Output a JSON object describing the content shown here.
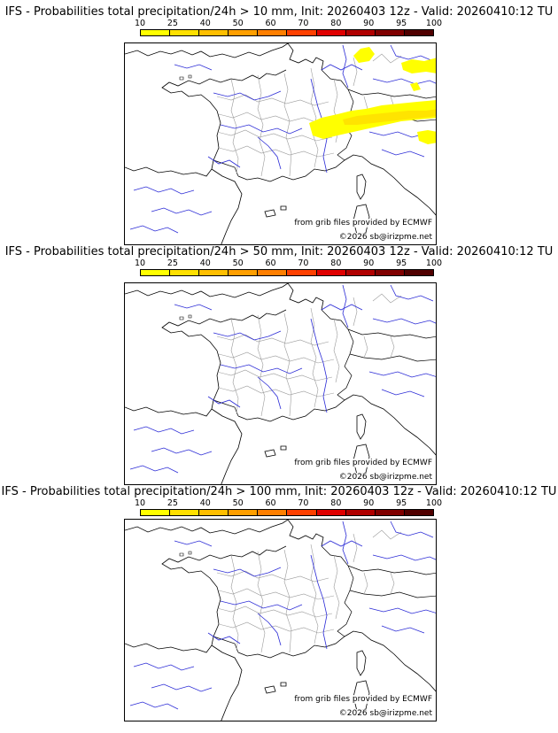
{
  "colorbar": {
    "labels": [
      "10",
      "25",
      "40",
      "50",
      "60",
      "70",
      "80",
      "90",
      "95",
      "100"
    ],
    "colors": [
      "#ffff00",
      "#ffe000",
      "#ffbf00",
      "#ff9f00",
      "#ff7f00",
      "#ff4000",
      "#e00000",
      "#b00000",
      "#800000",
      "#500000"
    ]
  },
  "credits": {
    "source": "from grib files provided by ECMWF",
    "copyright": "©2026 sb@irizpme.net"
  },
  "colors": {
    "coast": "#000000",
    "rivers": "#2b2bd6",
    "regions": "#9a9a9a",
    "prob_low": "#ffff00",
    "prob_mid": "#ffe400"
  },
  "panels": [
    {
      "title": "IFS - Probabilities total precipitation/24h > 10 mm, Init: 20260403 12z - Valid: 20260410:12 TU",
      "threshold_mm": 10,
      "has_precipitation": true
    },
    {
      "title": "IFS - Probabilities total precipitation/24h > 50 mm, Init: 20260403 12z - Valid: 20260410:12 TU",
      "threshold_mm": 50,
      "has_precipitation": false
    },
    {
      "title": "IFS - Probabilities total precipitation/24h > 100 mm, Init: 20260403 12z - Valid: 20260410:12 TU",
      "threshold_mm": 100,
      "has_precipitation": false
    }
  ]
}
